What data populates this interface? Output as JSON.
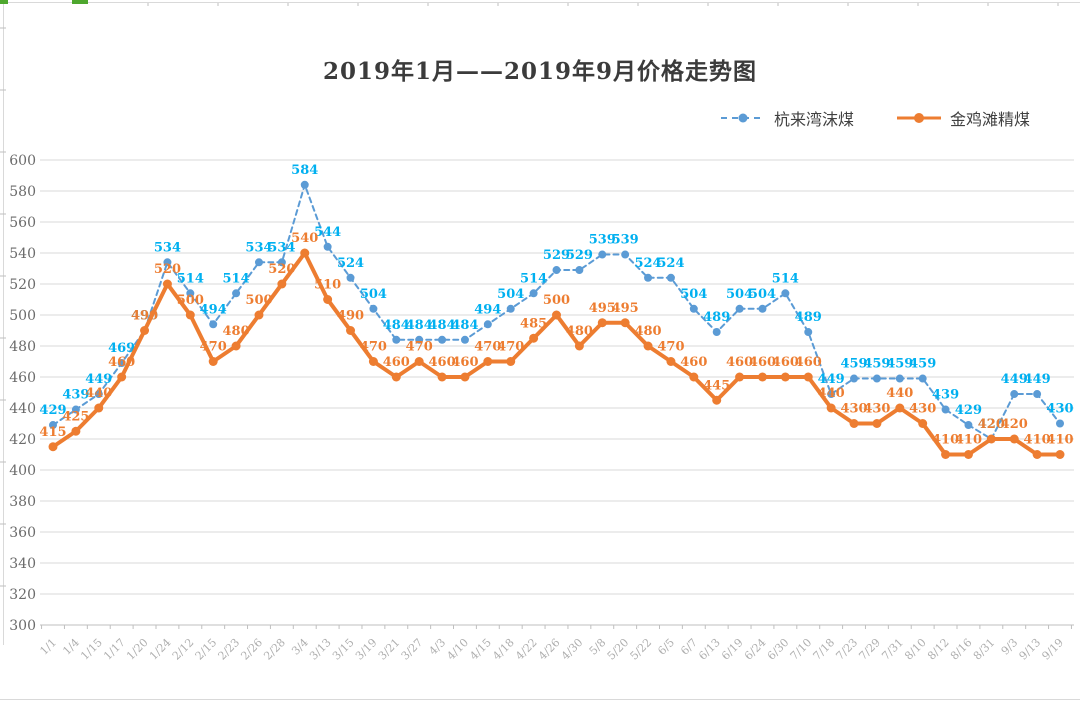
{
  "chart_data": {
    "type": "line",
    "title": "2019年1月——2019年9月价格走势图",
    "categories": [
      "1/1",
      "1/4",
      "1/15",
      "1/17",
      "1/20",
      "1/24",
      "2/12",
      "2/15",
      "2/23",
      "2/26",
      "2/28",
      "3/4",
      "3/13",
      "3/15",
      "3/19",
      "3/21",
      "3/27",
      "4/3",
      "4/10",
      "4/15",
      "4/18",
      "4/22",
      "4/26",
      "4/30",
      "5/8",
      "5/20",
      "5/22",
      "6/5",
      "6/7",
      "6/13",
      "6/19",
      "6/24",
      "6/30",
      "7/10",
      "7/18",
      "7/23",
      "7/29",
      "7/31",
      "8/10",
      "8/12",
      "8/16",
      "8/31",
      "9/3",
      "9/13",
      "9/19"
    ],
    "series": [
      {
        "name": "杭来湾沫煤",
        "line_style": "dashed",
        "color": "#5B9BD5",
        "label_color": "#00B0F0",
        "values": [
          429,
          439,
          449,
          469,
          490,
          534,
          514,
          494,
          514,
          534,
          534,
          584,
          544,
          524,
          504,
          484,
          484,
          484,
          484,
          494,
          504,
          514,
          529,
          529,
          539,
          539,
          524,
          524,
          504,
          489,
          504,
          504,
          514,
          489,
          449,
          459,
          459,
          459,
          459,
          439,
          429,
          420,
          449,
          449,
          430
        ]
      },
      {
        "name": "金鸡滩精煤",
        "line_style": "solid",
        "color": "#ED7D31",
        "label_color": "#ED7D31",
        "values": [
          415,
          425,
          440,
          460,
          490,
          520,
          500,
          470,
          480,
          500,
          520,
          540,
          510,
          490,
          470,
          460,
          470,
          460,
          460,
          470,
          470,
          485,
          500,
          480,
          495,
          495,
          480,
          470,
          460,
          445,
          460,
          460,
          460,
          460,
          440,
          430,
          430,
          440,
          430,
          410,
          410,
          420,
          420,
          410,
          410
        ]
      }
    ],
    "ylim": [
      300,
      600
    ],
    "y_tick_step": 20,
    "y_ticks": [
      300,
      320,
      340,
      360,
      380,
      400,
      420,
      440,
      460,
      480,
      500,
      520,
      540,
      560,
      580,
      600
    ],
    "xlabel": "",
    "ylabel": "",
    "grid": true,
    "legend_position": "top-right",
    "colors": {
      "gridline": "#D9D9D9",
      "axis_line": "#BFBFBF",
      "y_tick_label": "#6B6B6B",
      "x_tick_label": "#AEAEAE",
      "title_text": "#3B3B3B",
      "sheet_accent_green": "#4EA72E"
    }
  }
}
